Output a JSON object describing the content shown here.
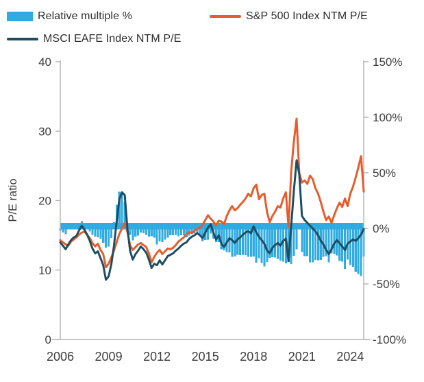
{
  "legend": {
    "items": [
      {
        "label": "Relative multiple %",
        "swatch": "bar-swatch",
        "color": "#2fabe1"
      },
      {
        "label": "S&P 500 Index NTM P/E",
        "swatch": "line-swatch",
        "color": "#e85c2b"
      },
      {
        "label": "MSCI EAFE Index NTM P/E",
        "swatch": "line-swatch",
        "color": "#1d4e63"
      }
    ]
  },
  "chart_data": {
    "type": "combo-bar-line",
    "title": "",
    "x_start": 2006.0,
    "x_step_years": 0.16667,
    "x_ticks": [
      2006,
      2009,
      2012,
      2015,
      2018,
      2021,
      2024
    ],
    "x_tick_labels": [
      "2006",
      "2009",
      "2012",
      "2015",
      "2018",
      "2021",
      "2024"
    ],
    "left_axis": {
      "label": "P/E ratio",
      "min": 0,
      "max": 40,
      "ticks": [
        0,
        10,
        20,
        30,
        40
      ],
      "tick_labels": [
        "0",
        "10",
        "20",
        "30",
        "40"
      ]
    },
    "right_axis": {
      "min": -100,
      "max": 150,
      "ticks": [
        -100,
        -50,
        0,
        50,
        100,
        150
      ],
      "tick_labels": [
        "-100%",
        "-50%",
        "0%",
        "50%",
        "100%",
        "150%"
      ]
    },
    "grid": false,
    "legend_position": "top",
    "axis_color": "#b0b2b4",
    "series": [
      {
        "name": "S&P 500 Index NTM P/E",
        "type": "line",
        "axis": "left",
        "color": "#e85c2b",
        "values": [
          14.3,
          14.0,
          13.7,
          13.5,
          14.1,
          14.4,
          14.7,
          15.1,
          15.4,
          15.5,
          15.1,
          14.6,
          13.9,
          13.4,
          13.8,
          12.9,
          12.3,
          10.4,
          10.9,
          11.8,
          12.8,
          14.0,
          15.2,
          16.0,
          16.8,
          15.5,
          13.6,
          12.9,
          13.3,
          13.7,
          13.9,
          13.6,
          13.3,
          12.4,
          11.1,
          11.9,
          12.5,
          12.9,
          12.3,
          12.7,
          13.1,
          13.0,
          13.2,
          13.6,
          14.1,
          14.4,
          14.7,
          15.2,
          15.5,
          15.3,
          15.7,
          15.9,
          16.1,
          16.5,
          17.2,
          17.9,
          17.4,
          17.0,
          16.4,
          17.1,
          17.0,
          16.6,
          17.8,
          18.6,
          19.2,
          18.6,
          18.9,
          19.4,
          19.8,
          20.3,
          21.0,
          20.6,
          21.8,
          22.3,
          20.2,
          20.8,
          21.0,
          18.3,
          16.9,
          17.8,
          18.4,
          19.2,
          19.0,
          20.3,
          21.2,
          16.2,
          24.3,
          28.6,
          31.8,
          24.0,
          22.6,
          22.9,
          22.4,
          23.6,
          23.1,
          21.8,
          21.0,
          19.8,
          18.4,
          17.2,
          17.7,
          16.8,
          17.9,
          18.9,
          19.7,
          19.1,
          20.3,
          19.2,
          21.0,
          22.0,
          23.3,
          24.8,
          26.4,
          21.3
        ]
      },
      {
        "name": "MSCI EAFE Index NTM P/E",
        "type": "line",
        "axis": "left",
        "color": "#1d4e63",
        "values": [
          14.0,
          13.5,
          13.0,
          13.7,
          14.3,
          14.7,
          14.9,
          15.7,
          16.4,
          15.8,
          15.1,
          14.2,
          13.1,
          12.4,
          12.7,
          11.7,
          10.7,
          8.6,
          9.1,
          10.8,
          13.5,
          17.0,
          20.2,
          21.2,
          20.8,
          16.0,
          12.8,
          11.5,
          12.3,
          12.8,
          13.4,
          13.0,
          12.5,
          11.5,
          10.3,
          10.9,
          10.7,
          11.4,
          10.8,
          11.4,
          12.0,
          12.2,
          12.4,
          12.8,
          13.1,
          13.5,
          13.8,
          14.0,
          14.5,
          14.8,
          15.0,
          15.3,
          15.0,
          14.6,
          15.4,
          16.1,
          16.6,
          15.4,
          14.4,
          15.0,
          13.8,
          13.3,
          14.0,
          14.6,
          14.3,
          13.9,
          14.4,
          14.7,
          15.1,
          15.4,
          15.6,
          15.3,
          16.3,
          15.4,
          14.8,
          14.3,
          13.8,
          12.8,
          12.4,
          13.2,
          13.6,
          13.9,
          13.5,
          14.2,
          14.5,
          11.3,
          16.5,
          21.5,
          25.8,
          23.8,
          17.8,
          17.2,
          16.8,
          16.4,
          16.0,
          15.6,
          15.0,
          14.2,
          13.7,
          12.9,
          12.3,
          13.0,
          13.8,
          14.3,
          13.9,
          13.4,
          12.9,
          13.8,
          14.1,
          14.4,
          14.2,
          14.6,
          15.1,
          15.9
        ]
      },
      {
        "name": "Relative multiple %",
        "type": "bar",
        "axis": "right",
        "color": "#2fabe1",
        "values": [
          -2.1,
          -3.6,
          -5.1,
          1.5,
          1.4,
          2.1,
          1.4,
          4.0,
          6.5,
          1.9,
          0.0,
          -2.7,
          -5.8,
          -7.5,
          -8.0,
          -9.3,
          -13.0,
          -17.3,
          -16.5,
          -8.5,
          5.5,
          21.4,
          32.9,
          32.5,
          23.8,
          3.2,
          -5.9,
          -10.9,
          -7.5,
          -6.6,
          -3.6,
          -4.4,
          -6.0,
          -7.3,
          -7.2,
          -8.4,
          -14.4,
          -11.6,
          -12.2,
          -10.2,
          -8.4,
          -6.2,
          -6.1,
          -5.9,
          -7.1,
          -6.3,
          -6.1,
          -7.9,
          -6.5,
          -3.3,
          -4.5,
          -3.8,
          -6.8,
          -11.5,
          -10.5,
          -10.1,
          -4.6,
          -9.4,
          -12.2,
          -12.3,
          -18.8,
          -19.9,
          -21.3,
          -21.5,
          -25.5,
          -25.3,
          -23.8,
          -24.2,
          -23.7,
          -24.1,
          -25.7,
          -25.7,
          -25.2,
          -30.9,
          -26.7,
          -31.3,
          -34.3,
          -30.1,
          -26.6,
          -25.8,
          -26.1,
          -27.6,
          -28.9,
          -30.0,
          -31.6,
          -30.2,
          -32.1,
          -24.8,
          -18.9,
          -0.8,
          -21.2,
          -24.9,
          -25.0,
          -30.5,
          -30.7,
          -28.4,
          -28.6,
          -28.3,
          -25.5,
          -25.0,
          -30.5,
          -22.6,
          -22.9,
          -24.3,
          -29.4,
          -29.8,
          -36.5,
          -28.1,
          -32.9,
          -34.5,
          -39.1,
          -41.1,
          -42.8,
          -25.4
        ]
      }
    ]
  }
}
